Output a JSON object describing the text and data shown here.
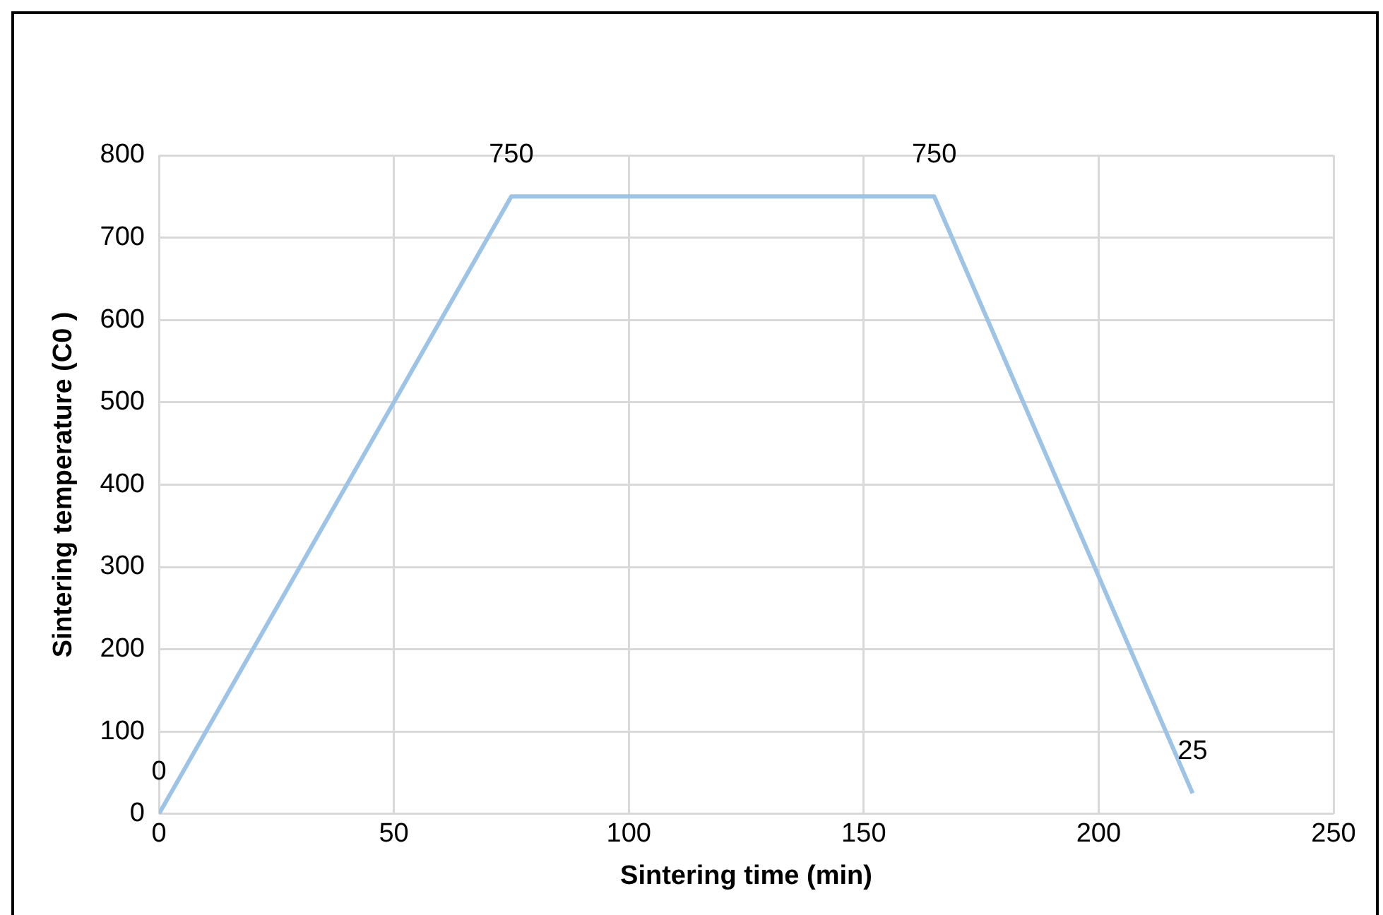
{
  "chart_data": {
    "type": "line",
    "xlabel": "Sintering time (min)",
    "ylabel": "Sintering temperature (C0 )",
    "x": [
      0,
      75,
      165,
      220
    ],
    "series": [
      {
        "color": "#9dc3e6",
        "values": [
          0,
          750,
          750,
          25
        ]
      }
    ],
    "xlim": [
      0,
      250
    ],
    "xticks": [
      0,
      50,
      100,
      150,
      200,
      250
    ],
    "ylim": [
      0,
      800
    ],
    "yticks": [
      0,
      100,
      200,
      300,
      400,
      500,
      600,
      700,
      800
    ],
    "grid": true,
    "legend": false,
    "marker": "none",
    "line_style": "solid",
    "data_labels": true
  }
}
